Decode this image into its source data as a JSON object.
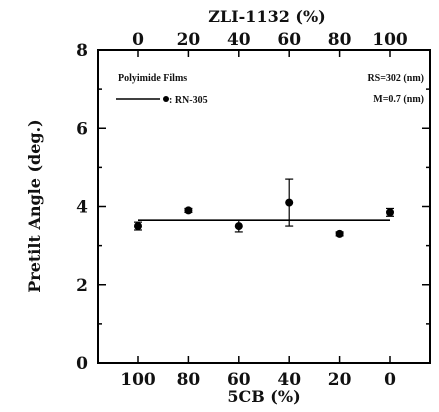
{
  "chart_data": {
    "type": "scatter",
    "xlabel": "5CB (%)",
    "x_top_label": "ZLI-1132 (%)",
    "ylabel": "Pretilt Angle (deg.)",
    "x_bottom_ticks": [
      "100",
      "80",
      "60",
      "40",
      "20",
      "0"
    ],
    "x_top_ticks": [
      "0",
      "20",
      "40",
      "60",
      "80",
      "100"
    ],
    "y_ticks": [
      "0",
      "2",
      "4",
      "6",
      "8"
    ],
    "xlim": [
      100,
      0
    ],
    "ylim": [
      0,
      8
    ],
    "x_top_lim": [
      0,
      100
    ],
    "legend": {
      "title": "Polyimide Films",
      "series_label": ": RN-305",
      "note_1": "RS=302 (nm)",
      "note_2": "M=0.7 (nm)"
    },
    "series": [
      {
        "name": "RN-305",
        "x": [
          100,
          80,
          60,
          40,
          20,
          0
        ],
        "y": [
          3.5,
          3.9,
          3.5,
          4.1,
          3.3,
          3.85
        ],
        "err": [
          0.1,
          0.05,
          0.15,
          0.6,
          0.05,
          0.1
        ]
      }
    ],
    "fit_line": {
      "y": 3.65,
      "x_range": [
        100,
        0
      ]
    }
  }
}
